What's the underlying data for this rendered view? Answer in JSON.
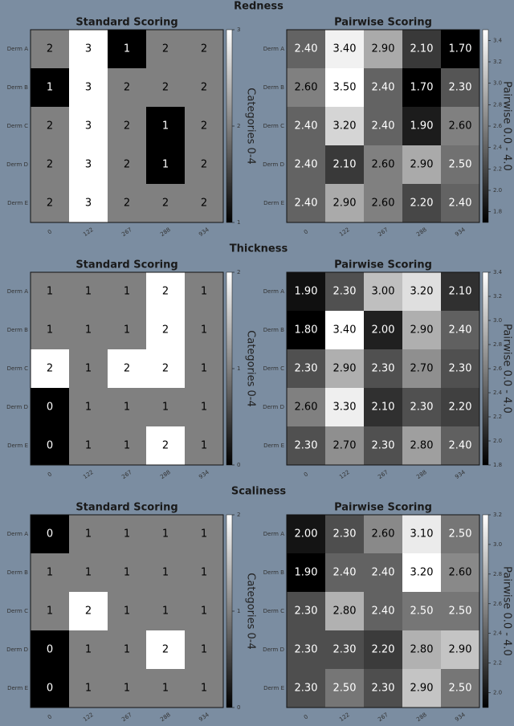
{
  "sections": [
    {
      "title": "Redness",
      "charts": [
        {
          "type": "heatmap",
          "title": "Standard Scoring",
          "rows": [
            "Derm A",
            "Derm B",
            "Derm C",
            "Derm D",
            "Derm E"
          ],
          "columns": [
            "0",
            "122",
            "267",
            "288",
            "934"
          ],
          "values": [
            [
              2,
              3,
              1,
              2,
              2
            ],
            [
              1,
              3,
              2,
              2,
              2
            ],
            [
              2,
              3,
              2,
              1,
              2
            ],
            [
              2,
              3,
              2,
              1,
              2
            ],
            [
              2,
              3,
              2,
              2,
              2
            ]
          ],
          "clim": [
            1,
            3
          ],
          "cticks": [
            1,
            2,
            3
          ],
          "colorbar_label": "Categories 0-4"
        },
        {
          "type": "heatmap",
          "title": "Pairwise Scoring",
          "rows": [
            "Derm A",
            "Derm B",
            "Derm C",
            "Derm D",
            "Derm E"
          ],
          "columns": [
            "0",
            "122",
            "267",
            "288",
            "934"
          ],
          "values": [
            [
              2.4,
              3.4,
              2.9,
              2.1,
              1.7
            ],
            [
              2.6,
              3.5,
              2.4,
              1.7,
              2.3
            ],
            [
              2.4,
              3.2,
              2.4,
              1.9,
              2.6
            ],
            [
              2.4,
              2.1,
              2.6,
              2.9,
              2.5
            ],
            [
              2.4,
              2.9,
              2.6,
              2.2,
              2.4
            ]
          ],
          "value_labels": [
            [
              "2.40",
              "3.40",
              "2.90",
              "2.10",
              "1.70"
            ],
            [
              "2.60",
              "3.50",
              "2.40",
              "1.70",
              "2.30"
            ],
            [
              "2.40",
              "3.20",
              "2.40",
              "1.90",
              "2.60"
            ],
            [
              "2.40",
              "2.10",
              "2.60",
              "2.90",
              "2.50"
            ],
            [
              "2.40",
              "2.90",
              "2.60",
              "2.20",
              "2.40"
            ]
          ],
          "clim": [
            1.7,
            3.5
          ],
          "cticks": [
            1.8,
            {
              "value": 2,
              "label": "2.0"
            },
            2.2,
            2.4,
            2.6,
            2.8,
            {
              "value": 3,
              "label": "3.0"
            },
            3.2,
            3.4
          ],
          "colorbar_label": "Pairwise 0.0 - 4.0"
        }
      ]
    },
    {
      "title": "Thickness",
      "charts": [
        {
          "type": "heatmap",
          "title": "Standard Scoring",
          "rows": [
            "Derm A",
            "Derm B",
            "Derm C",
            "Derm D",
            "Derm E"
          ],
          "columns": [
            "0",
            "122",
            "267",
            "288",
            "934"
          ],
          "values": [
            [
              1,
              1,
              1,
              2,
              1
            ],
            [
              1,
              1,
              1,
              2,
              1
            ],
            [
              2,
              1,
              2,
              2,
              1
            ],
            [
              0,
              1,
              1,
              1,
              1
            ],
            [
              0,
              1,
              1,
              2,
              1
            ]
          ],
          "clim": [
            0,
            2
          ],
          "cticks": [
            0,
            1,
            2
          ],
          "colorbar_label": "Categories 0-4"
        },
        {
          "type": "heatmap",
          "title": "Pairwise Scoring",
          "rows": [
            "Derm A",
            "Derm B",
            "Derm C",
            "Derm D",
            "Derm E"
          ],
          "columns": [
            "0",
            "122",
            "267",
            "288",
            "934"
          ],
          "values": [
            [
              1.9,
              2.3,
              3.0,
              3.2,
              2.1
            ],
            [
              1.8,
              3.4,
              2.0,
              2.9,
              2.4
            ],
            [
              2.3,
              2.9,
              2.3,
              2.7,
              2.3
            ],
            [
              2.6,
              3.3,
              2.1,
              2.3,
              2.2
            ],
            [
              2.3,
              2.7,
              2.3,
              2.8,
              2.4
            ]
          ],
          "value_labels": [
            [
              "1.90",
              "2.30",
              "3.00",
              "3.20",
              "2.10"
            ],
            [
              "1.80",
              "3.40",
              "2.00",
              "2.90",
              "2.40"
            ],
            [
              "2.30",
              "2.90",
              "2.30",
              "2.70",
              "2.30"
            ],
            [
              "2.60",
              "3.30",
              "2.10",
              "2.30",
              "2.20"
            ],
            [
              "2.30",
              "2.70",
              "2.30",
              "2.80",
              "2.40"
            ]
          ],
          "clim": [
            1.8,
            3.4
          ],
          "cticks": [
            1.8,
            {
              "value": 2,
              "label": "2.0"
            },
            2.2,
            2.4,
            2.6,
            2.8,
            {
              "value": 3,
              "label": "3.0"
            },
            3.2,
            3.4
          ],
          "colorbar_label": "Pairwise 0.0 - 4.0"
        }
      ]
    },
    {
      "title": "Scaliness",
      "charts": [
        {
          "type": "heatmap",
          "title": "Standard Scoring",
          "rows": [
            "Derm A",
            "Derm B",
            "Derm C",
            "Derm D",
            "Derm E"
          ],
          "columns": [
            "0",
            "122",
            "267",
            "288",
            "934"
          ],
          "values": [
            [
              0,
              1,
              1,
              1,
              1
            ],
            [
              1,
              1,
              1,
              1,
              1
            ],
            [
              1,
              2,
              1,
              1,
              1
            ],
            [
              0,
              1,
              1,
              2,
              1
            ],
            [
              0,
              1,
              1,
              1,
              1
            ]
          ],
          "clim": [
            0,
            2
          ],
          "cticks": [
            0,
            1,
            2
          ],
          "colorbar_label": "Categories 0-4"
        },
        {
          "type": "heatmap",
          "title": "Pairwise Scoring",
          "rows": [
            "Derm A",
            "Derm B",
            "Derm C",
            "Derm D",
            "Derm E"
          ],
          "columns": [
            "0",
            "122",
            "267",
            "288",
            "934"
          ],
          "values": [
            [
              2.0,
              2.3,
              2.6,
              3.1,
              2.5
            ],
            [
              1.9,
              2.4,
              2.4,
              3.2,
              2.6
            ],
            [
              2.3,
              2.8,
              2.4,
              2.5,
              2.5
            ],
            [
              2.3,
              2.3,
              2.2,
              2.8,
              2.9
            ],
            [
              2.3,
              2.5,
              2.3,
              2.9,
              2.5
            ]
          ],
          "value_labels": [
            [
              "2.00",
              "2.30",
              "2.60",
              "3.10",
              "2.50"
            ],
            [
              "1.90",
              "2.40",
              "2.40",
              "3.20",
              "2.60"
            ],
            [
              "2.30",
              "2.80",
              "2.40",
              "2.50",
              "2.50"
            ],
            [
              "2.30",
              "2.30",
              "2.20",
              "2.80",
              "2.90"
            ],
            [
              "2.30",
              "2.50",
              "2.30",
              "2.90",
              "2.50"
            ]
          ],
          "clim": [
            1.9,
            3.2
          ],
          "cticks": [
            {
              "value": 2,
              "label": "2.0"
            },
            2.2,
            2.4,
            2.6,
            2.8,
            {
              "value": 3,
              "label": "3.0"
            },
            3.2
          ],
          "colorbar_label": "Pairwise 0.0 - 4.0"
        }
      ]
    }
  ]
}
